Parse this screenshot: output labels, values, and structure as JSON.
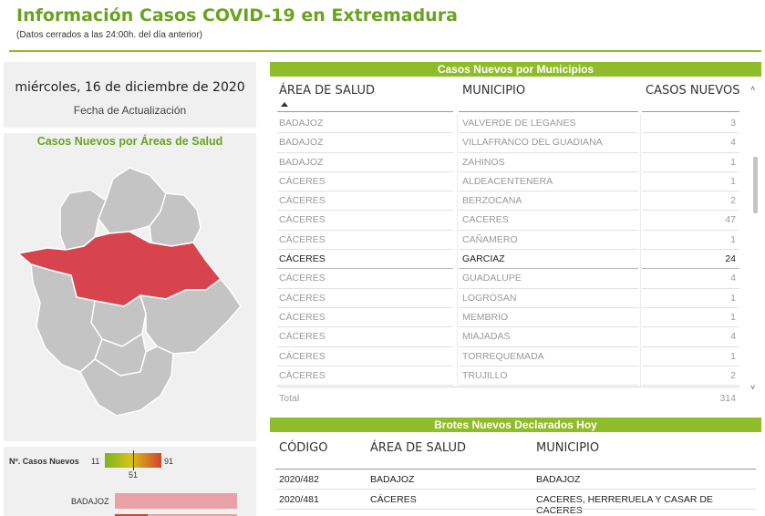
{
  "header": {
    "title": "Información Casos COVID-19 en Extremadura",
    "subtitle": "(Datos cerrados a las 24:00h. del día anterior)"
  },
  "date_card": {
    "date": "miércoles, 16 de diciembre de 2020",
    "label": "Fecha de Actualización"
  },
  "map": {
    "title": "Casos Nuevos por Áreas de Salud",
    "highlight_color": "#d8444e",
    "base_color": "#c4c4c4"
  },
  "legend": {
    "label": "Nº. Casos Nuevos",
    "min": "11",
    "max": "91",
    "mid": "51",
    "bar_label": "BADAJOZ"
  },
  "municipios": {
    "title": "Casos Nuevos por Municipios",
    "headers": {
      "area": "ÁREA DE SALUD",
      "municipio": "MUNICIPIO",
      "casos": "CASOS NUEVOS"
    },
    "rows": [
      {
        "area": "BADAJOZ",
        "municipio": "VALVERDE DE LEGANES",
        "casos": "3",
        "selected": false
      },
      {
        "area": "BADAJOZ",
        "municipio": "VILLAFRANCO DEL GUADIANA",
        "casos": "4",
        "selected": false
      },
      {
        "area": "BADAJOZ",
        "municipio": "ZAHINOS",
        "casos": "1",
        "selected": false
      },
      {
        "area": "CÁCERES",
        "municipio": "ALDEACENTENERA",
        "casos": "1",
        "selected": false
      },
      {
        "area": "CÁCERES",
        "municipio": "BERZOCANA",
        "casos": "2",
        "selected": false
      },
      {
        "area": "CÁCERES",
        "municipio": "CACERES",
        "casos": "47",
        "selected": false
      },
      {
        "area": "CÁCERES",
        "municipio": "CAÑAMERO",
        "casos": "1",
        "selected": false
      },
      {
        "area": "CÁCERES",
        "municipio": "GARCIAZ",
        "casos": "24",
        "selected": true
      },
      {
        "area": "CÁCERES",
        "municipio": "GUADALUPE",
        "casos": "4",
        "selected": false
      },
      {
        "area": "CÁCERES",
        "municipio": "LOGROSAN",
        "casos": "1",
        "selected": false
      },
      {
        "area": "CÁCERES",
        "municipio": "MEMBRIO",
        "casos": "1",
        "selected": false
      },
      {
        "area": "CÁCERES",
        "municipio": "MIAJADAS",
        "casos": "4",
        "selected": false
      },
      {
        "area": "CÁCERES",
        "municipio": "TORREQUEMADA",
        "casos": "1",
        "selected": false
      },
      {
        "area": "CÁCERES",
        "municipio": "TRUJILLO",
        "casos": "2",
        "selected": false
      }
    ],
    "total_label": "Total",
    "total_value": "314"
  },
  "brotes": {
    "title": "Brotes Nuevos Declarados Hoy",
    "headers": {
      "codigo": "CÓDIGO",
      "area": "ÁREA DE SALUD",
      "municipio": "MUNICIPIO"
    },
    "rows": [
      {
        "codigo": "2020/482",
        "area": "BADAJOZ",
        "municipio": "BADAJOZ"
      },
      {
        "codigo": "2020/481",
        "area": "CÁCERES",
        "municipio": "CACERES, HERRERUELA Y CASAR DE CACERES"
      }
    ]
  }
}
